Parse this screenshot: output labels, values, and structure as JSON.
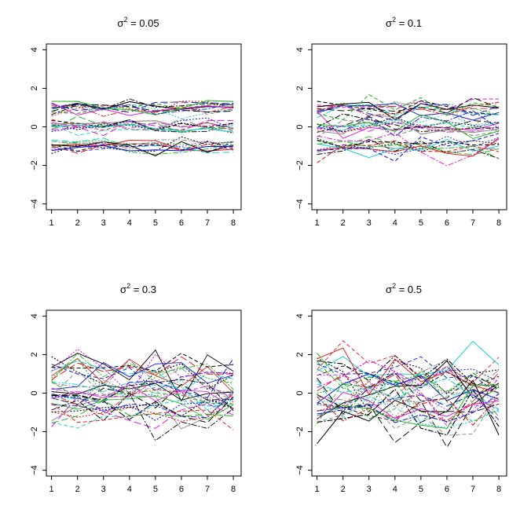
{
  "colors": [
    "#000000",
    "#df2020",
    "#22b522",
    "#1a1ad6",
    "#14d2d2",
    "#df1fdf",
    "#000000",
    "#8a8a8a"
  ],
  "chart_data": [
    {
      "type": "line",
      "title_prefix": "σ",
      "title_sup": "2",
      "title_suffix": " = 0.05",
      "x": [
        1,
        2,
        3,
        4,
        5,
        6,
        7,
        8
      ],
      "xticks": [
        "1",
        "2",
        "3",
        "4",
        "5",
        "6",
        "7",
        "8"
      ],
      "yticks": [
        "−4",
        "−2",
        "0",
        "2",
        "4"
      ],
      "ylim": [
        -4.3,
        4.3
      ],
      "xlim": [
        0.8,
        8.3
      ],
      "noise_sd": 0.22,
      "series": [
        {
          "center": 1.0
        },
        {
          "center": 1.0
        },
        {
          "center": 1.0
        },
        {
          "center": 1.0
        },
        {
          "center": 1.0
        },
        {
          "center": 1.0
        },
        {
          "center": 1.0
        },
        {
          "center": 1.0
        },
        {
          "center": 1.0
        },
        {
          "center": 1.0
        },
        {
          "center": 1.0
        },
        {
          "center": 1.0
        },
        {
          "center": 0.0
        },
        {
          "center": 0.0
        },
        {
          "center": 0.0
        },
        {
          "center": 0.0
        },
        {
          "center": 0.0
        },
        {
          "center": 0.0
        },
        {
          "center": 0.0
        },
        {
          "center": 0.0
        },
        {
          "center": 0.0
        },
        {
          "center": 0.0
        },
        {
          "center": 0.0
        },
        {
          "center": 0.0
        },
        {
          "center": -1.0
        },
        {
          "center": -1.0
        },
        {
          "center": -1.0
        },
        {
          "center": -1.0
        },
        {
          "center": -1.0
        },
        {
          "center": -1.0
        },
        {
          "center": -1.0
        },
        {
          "center": -1.0
        },
        {
          "center": -1.0
        },
        {
          "center": -1.0
        },
        {
          "center": -1.0
        },
        {
          "center": -1.0
        }
      ]
    },
    {
      "type": "line",
      "title_prefix": "σ",
      "title_sup": "2",
      "title_suffix": " = 0.1",
      "x": [
        1,
        2,
        3,
        4,
        5,
        6,
        7,
        8
      ],
      "xticks": [
        "1",
        "2",
        "3",
        "4",
        "5",
        "6",
        "7",
        "8"
      ],
      "yticks": [
        "−4",
        "−2",
        "0",
        "2",
        "4"
      ],
      "ylim": [
        -4.3,
        4.3
      ],
      "xlim": [
        0.8,
        8.3
      ],
      "noise_sd": 0.3,
      "series": [
        {
          "center": 1.0
        },
        {
          "center": 1.0
        },
        {
          "center": 1.0
        },
        {
          "center": 1.0
        },
        {
          "center": 1.0
        },
        {
          "center": 1.0
        },
        {
          "center": 1.0
        },
        {
          "center": 1.0
        },
        {
          "center": 1.0
        },
        {
          "center": 1.0
        },
        {
          "center": 1.0
        },
        {
          "center": 1.0
        },
        {
          "center": 0.0
        },
        {
          "center": 0.0
        },
        {
          "center": 0.0
        },
        {
          "center": 0.0
        },
        {
          "center": 0.0
        },
        {
          "center": 0.0
        },
        {
          "center": 0.0
        },
        {
          "center": 0.0
        },
        {
          "center": 0.0
        },
        {
          "center": 0.0
        },
        {
          "center": 0.0
        },
        {
          "center": 0.0
        },
        {
          "center": -1.0
        },
        {
          "center": -1.0
        },
        {
          "center": -1.0
        },
        {
          "center": -1.0
        },
        {
          "center": -1.0
        },
        {
          "center": -1.0
        },
        {
          "center": -1.0
        },
        {
          "center": -1.0
        },
        {
          "center": -1.0
        },
        {
          "center": -1.0
        },
        {
          "center": -1.0
        },
        {
          "center": -1.0
        }
      ]
    },
    {
      "type": "line",
      "title_prefix": "σ",
      "title_sup": "2",
      "title_suffix": " = 0.3",
      "x": [
        1,
        2,
        3,
        4,
        5,
        6,
        7,
        8
      ],
      "xticks": [
        "1",
        "2",
        "3",
        "4",
        "5",
        "6",
        "7",
        "8"
      ],
      "yticks": [
        "−4",
        "−2",
        "0",
        "2",
        "4"
      ],
      "ylim": [
        -4.3,
        4.3
      ],
      "xlim": [
        0.8,
        8.3
      ],
      "noise_sd": 0.55,
      "series": [
        {
          "center": 1.0
        },
        {
          "center": 1.0
        },
        {
          "center": 1.0
        },
        {
          "center": 1.0
        },
        {
          "center": 1.0
        },
        {
          "center": 1.0
        },
        {
          "center": 1.0
        },
        {
          "center": 1.0
        },
        {
          "center": 1.0
        },
        {
          "center": 1.0
        },
        {
          "center": 1.0
        },
        {
          "center": 1.0
        },
        {
          "center": 0.0
        },
        {
          "center": 0.0
        },
        {
          "center": 0.0
        },
        {
          "center": 0.0
        },
        {
          "center": 0.0
        },
        {
          "center": 0.0
        },
        {
          "center": 0.0
        },
        {
          "center": 0.0
        },
        {
          "center": 0.0
        },
        {
          "center": 0.0
        },
        {
          "center": 0.0
        },
        {
          "center": 0.0
        },
        {
          "center": -1.0
        },
        {
          "center": -1.0
        },
        {
          "center": -1.0
        },
        {
          "center": -1.0
        },
        {
          "center": -1.0
        },
        {
          "center": -1.0
        },
        {
          "center": -1.0
        },
        {
          "center": -1.0
        },
        {
          "center": -1.0
        },
        {
          "center": -1.0
        },
        {
          "center": -1.0
        },
        {
          "center": -1.0
        }
      ]
    },
    {
      "type": "line",
      "title_prefix": "σ",
      "title_sup": "2",
      "title_suffix": " = 0.5",
      "x": [
        1,
        2,
        3,
        4,
        5,
        6,
        7,
        8
      ],
      "xticks": [
        "1",
        "2",
        "3",
        "4",
        "5",
        "6",
        "7",
        "8"
      ],
      "yticks": [
        "−4",
        "−2",
        "0",
        "2",
        "4"
      ],
      "ylim": [
        -4.3,
        4.3
      ],
      "xlim": [
        0.8,
        8.3
      ],
      "noise_sd": 0.7,
      "series": [
        {
          "center": 1.0
        },
        {
          "center": 1.0
        },
        {
          "center": 1.0
        },
        {
          "center": 1.0
        },
        {
          "center": 1.0
        },
        {
          "center": 1.0
        },
        {
          "center": 1.0
        },
        {
          "center": 1.0
        },
        {
          "center": 1.0
        },
        {
          "center": 1.0
        },
        {
          "center": 1.0
        },
        {
          "center": 1.0
        },
        {
          "center": 0.0
        },
        {
          "center": 0.0
        },
        {
          "center": 0.0
        },
        {
          "center": 0.0
        },
        {
          "center": 0.0
        },
        {
          "center": 0.0
        },
        {
          "center": 0.0
        },
        {
          "center": 0.0
        },
        {
          "center": 0.0
        },
        {
          "center": 0.0
        },
        {
          "center": 0.0
        },
        {
          "center": 0.0
        },
        {
          "center": -1.0
        },
        {
          "center": -1.0
        },
        {
          "center": -1.0
        },
        {
          "center": -1.0
        },
        {
          "center": -1.0
        },
        {
          "center": -1.0
        },
        {
          "center": -1.0
        },
        {
          "center": -1.0
        },
        {
          "center": -1.0
        },
        {
          "center": -1.0
        },
        {
          "center": -1.0
        },
        {
          "center": -1.0
        }
      ]
    }
  ]
}
